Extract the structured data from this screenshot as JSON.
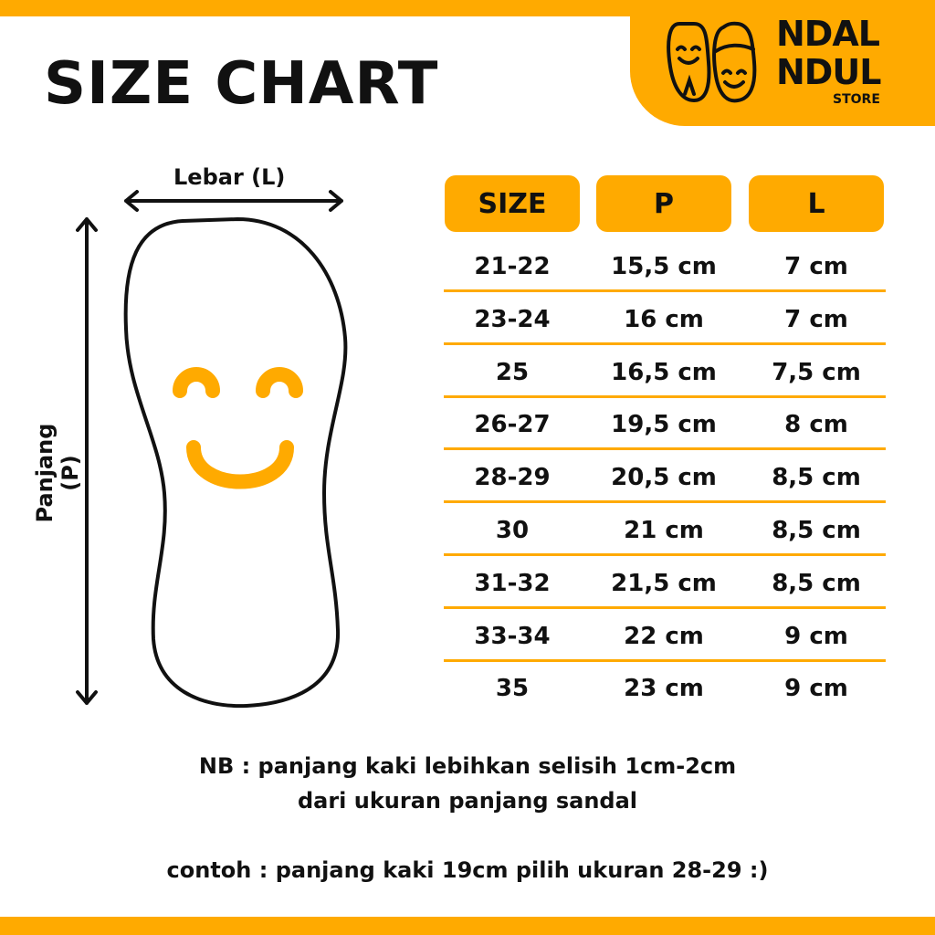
{
  "header": {
    "title": "SIZE CHART"
  },
  "logo": {
    "line1": "NDAL",
    "line2": "NDUL",
    "line3": "STORE"
  },
  "diagram": {
    "width_label": "Lebar (L)",
    "length_label": "Panjang (P)"
  },
  "colors": {
    "accent": "#FFAA00",
    "text": "#111111"
  },
  "table": {
    "headers": [
      "SIZE",
      "P",
      "L"
    ],
    "rows": [
      [
        "21-22",
        "15,5 cm",
        "7 cm"
      ],
      [
        "23-24",
        "16 cm",
        "7 cm"
      ],
      [
        "25",
        "16,5 cm",
        "7,5 cm"
      ],
      [
        "26-27",
        "19,5 cm",
        "8 cm"
      ],
      [
        "28-29",
        "20,5 cm",
        "8,5 cm"
      ],
      [
        "30",
        "21 cm",
        "8,5 cm"
      ],
      [
        "31-32",
        "21,5 cm",
        "8,5 cm"
      ],
      [
        "33-34",
        "22 cm",
        "9 cm"
      ],
      [
        "35",
        "23 cm",
        "9 cm"
      ]
    ]
  },
  "notes": {
    "nb_line1": "NB : panjang kaki lebihkan selisih 1cm-2cm",
    "nb_line2": "dari ukuran panjang sandal",
    "example": "contoh : panjang kaki 19cm pilih ukuran 28-29 :)"
  }
}
